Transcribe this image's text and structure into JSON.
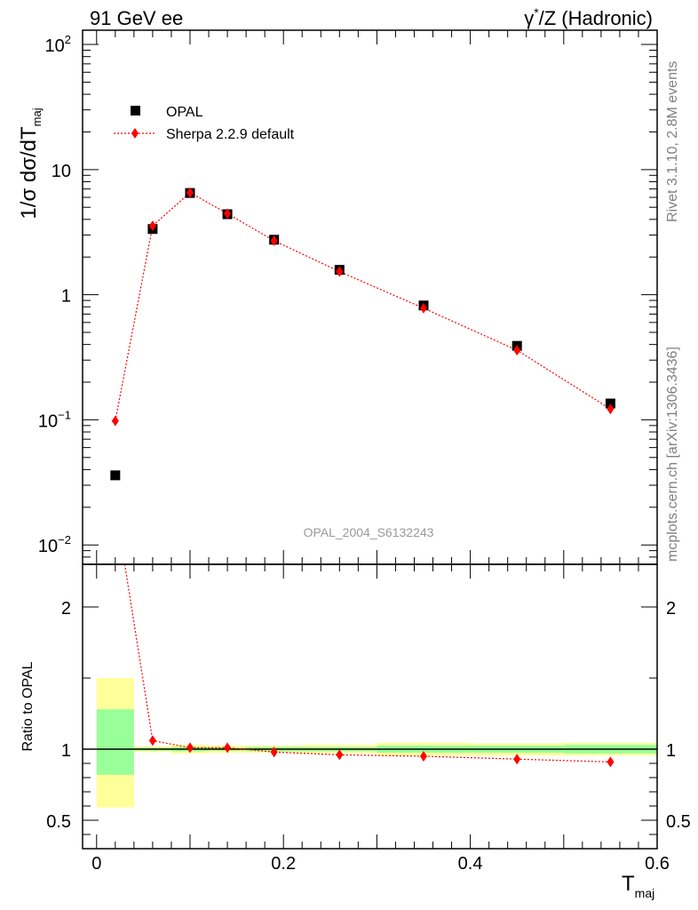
{
  "header": {
    "left": "91 GeV ee",
    "right_prefix": "γ",
    "right_sup": "*",
    "right_suffix": "/Z (Hadronic)"
  },
  "side_text": {
    "rivet": "Rivet 3.1.10,  2.8M events",
    "mcplots": "mcplots.cern.ch [arXiv:1306.3436]"
  },
  "analysis_label": "OPAL_2004_S6132243",
  "ylabel_main": {
    "base": "1/σ dσ/dT",
    "sub": "maj"
  },
  "ylabel_ratio": "Ratio to OPAL",
  "xlabel": {
    "base": "T",
    "sub": "maj"
  },
  "legend": [
    {
      "label": "OPAL",
      "marker": "square",
      "color": "#000000"
    },
    {
      "label": "Sherpa 2.2.9 default",
      "marker": "diamond",
      "color": "#ff0000"
    }
  ],
  "colors": {
    "mc": "#ff0000",
    "data": "#000000",
    "band_inner": "#99ff99",
    "band_outer": "#ffff99"
  },
  "chart_data": [
    {
      "type": "scatter",
      "panel": "main",
      "yscale": "log",
      "xlim": [
        -0.015,
        0.6
      ],
      "ylim": [
        0.007,
        130
      ],
      "y_ticks": [
        {
          "value": 0.01,
          "base": "10",
          "exp": "−2"
        },
        {
          "value": 0.1,
          "base": "10",
          "exp": "−1"
        },
        {
          "value": 1,
          "base": "1",
          "exp": ""
        },
        {
          "value": 10,
          "base": "10",
          "exp": ""
        },
        {
          "value": 100,
          "base": "10",
          "exp": "2"
        }
      ],
      "series": [
        {
          "name": "OPAL",
          "x": [
            0.02,
            0.06,
            0.1,
            0.14,
            0.19,
            0.26,
            0.35,
            0.45,
            0.55
          ],
          "y": [
            0.036,
            3.35,
            6.5,
            4.4,
            2.75,
            1.58,
            0.82,
            0.39,
            0.135
          ]
        },
        {
          "name": "Sherpa 2.2.9 default",
          "x": [
            0.02,
            0.06,
            0.1,
            0.14,
            0.19,
            0.26,
            0.35,
            0.45,
            0.55
          ],
          "y": [
            0.098,
            3.55,
            6.55,
            4.45,
            2.7,
            1.53,
            0.78,
            0.36,
            0.122
          ]
        }
      ]
    },
    {
      "type": "line",
      "panel": "ratio",
      "xlim": [
        -0.015,
        0.6
      ],
      "ylim": [
        0.3,
        2.3
      ],
      "y_ticks": [
        "0.5",
        "1",
        "2"
      ],
      "x_ticks": [
        "0",
        "0.2",
        "0.4",
        "0.6"
      ],
      "bins": [
        {
          "lo": 0.0,
          "hi": 0.04,
          "inner": [
            0.82,
            1.28
          ],
          "outer": [
            0.59,
            1.5
          ]
        },
        {
          "lo": 0.04,
          "hi": 0.08,
          "inner": [
            0.99,
            1.01
          ],
          "outer": [
            0.98,
            1.02
          ]
        },
        {
          "lo": 0.08,
          "hi": 0.12,
          "inner": [
            0.985,
            1.015
          ],
          "outer": [
            0.97,
            1.03
          ]
        },
        {
          "lo": 0.12,
          "hi": 0.16,
          "inner": [
            0.99,
            1.01
          ],
          "outer": [
            0.975,
            1.025
          ]
        },
        {
          "lo": 0.16,
          "hi": 0.22,
          "inner": [
            0.985,
            1.015
          ],
          "outer": [
            0.975,
            1.025
          ]
        },
        {
          "lo": 0.22,
          "hi": 0.3,
          "inner": [
            0.985,
            1.015
          ],
          "outer": [
            0.97,
            1.03
          ]
        },
        {
          "lo": 0.3,
          "hi": 0.4,
          "inner": [
            0.975,
            1.025
          ],
          "outer": [
            0.955,
            1.045
          ]
        },
        {
          "lo": 0.4,
          "hi": 0.5,
          "inner": [
            0.975,
            1.025
          ],
          "outer": [
            0.955,
            1.04
          ]
        },
        {
          "lo": 0.5,
          "hi": 0.6,
          "inner": [
            0.97,
            1.03
          ],
          "outer": [
            0.955,
            1.045
          ]
        }
      ],
      "series": [
        {
          "name": "Sherpa 2.2.9 default",
          "x": [
            0.02,
            0.06,
            0.1,
            0.14,
            0.19,
            0.26,
            0.35,
            0.45,
            0.55
          ],
          "y": [
            2.72,
            1.06,
            1.01,
            1.01,
            0.98,
            0.96,
            0.95,
            0.93,
            0.91
          ]
        }
      ]
    }
  ]
}
